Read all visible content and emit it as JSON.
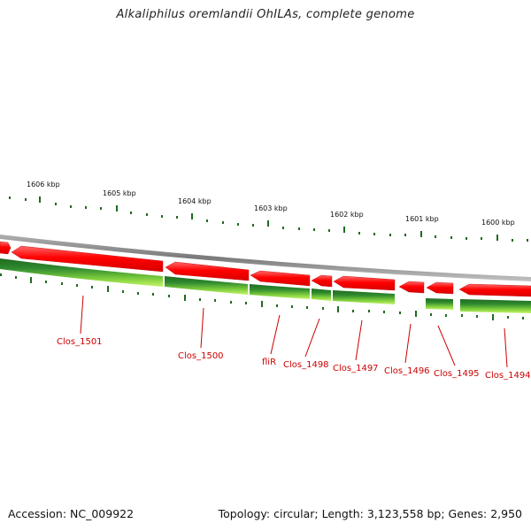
{
  "title": "Alkaliphilus oremlandii OhILAs, complete genome",
  "footer": {
    "accession": "Accession: NC_009922",
    "stats": "Topology: circular; Length: 3,123,558 bp; Genes: 2,950"
  },
  "scale_labels": [
    "1606 kbp",
    "1605 kbp",
    "1604 kbp",
    "1603 kbp",
    "1602 kbp",
    "1601 kbp",
    "1600 kbp"
  ],
  "gene_labels": [
    "Clos_1501",
    "Clos_1500",
    "fliR",
    "Clos_1498",
    "Clos_1497",
    "Clos_1496",
    "Clos_1495",
    "Clos_1494"
  ],
  "colors": {
    "gene_red": "#ff0000",
    "backbone_gray": "#8c8c8c",
    "track_dark_green": "#2e7d2e",
    "track_light_green": "#b8f05a",
    "tick_green": "#1f6b1f",
    "label_red": "#cc0000"
  }
}
